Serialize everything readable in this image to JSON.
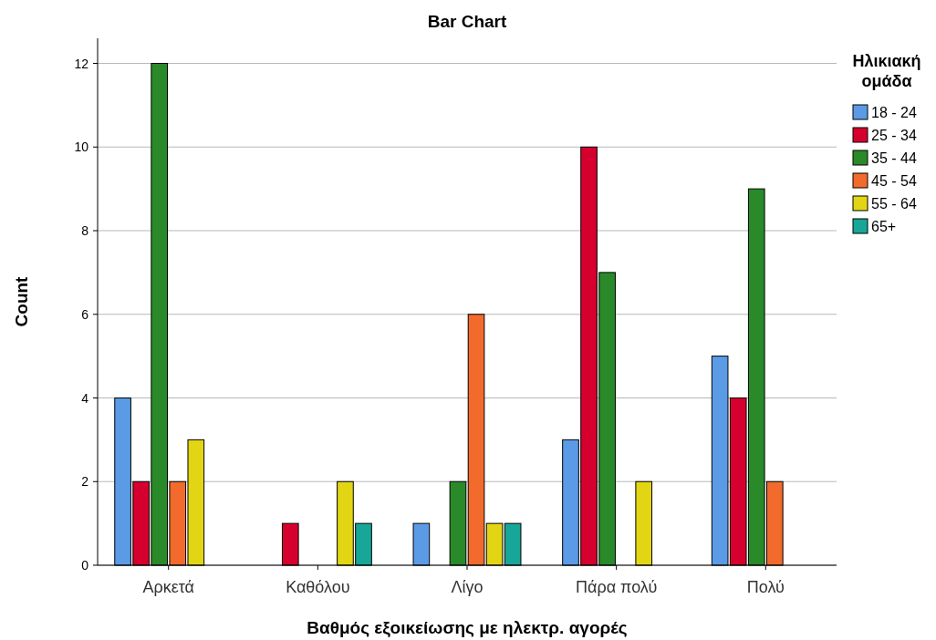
{
  "chart_data": {
    "type": "bar",
    "title": "Bar Chart",
    "xlabel": "Βαθμός εξοικείωσης με ηλεκτρ. αγορές",
    "ylabel": "Count",
    "legend_title": "Ηλικιακή ομάδα",
    "categories": [
      "Αρκετά",
      "Καθόλου",
      "Λίγο",
      "Πάρα πολύ",
      "Πολύ"
    ],
    "series": [
      {
        "name": "18 - 24",
        "color": "#5b9be6",
        "values": [
          4,
          null,
          1,
          3,
          5
        ]
      },
      {
        "name": "25 - 34",
        "color": "#d6002f",
        "values": [
          2,
          1,
          null,
          10,
          4
        ]
      },
      {
        "name": "35 - 44",
        "color": "#2a8a2a",
        "values": [
          12,
          null,
          2,
          7,
          9
        ]
      },
      {
        "name": "45 - 54",
        "color": "#f26a2c",
        "values": [
          2,
          null,
          6,
          null,
          2
        ]
      },
      {
        "name": "55 - 64",
        "color": "#e2d514",
        "values": [
          3,
          2,
          1,
          2,
          null
        ]
      },
      {
        "name": "65+",
        "color": "#17a697",
        "values": [
          null,
          1,
          1,
          null,
          null
        ]
      }
    ],
    "ylim": [
      0,
      12.6
    ],
    "yticks": [
      0,
      2,
      4,
      6,
      8,
      10,
      12
    ],
    "grid": "y",
    "legend": "top right"
  }
}
